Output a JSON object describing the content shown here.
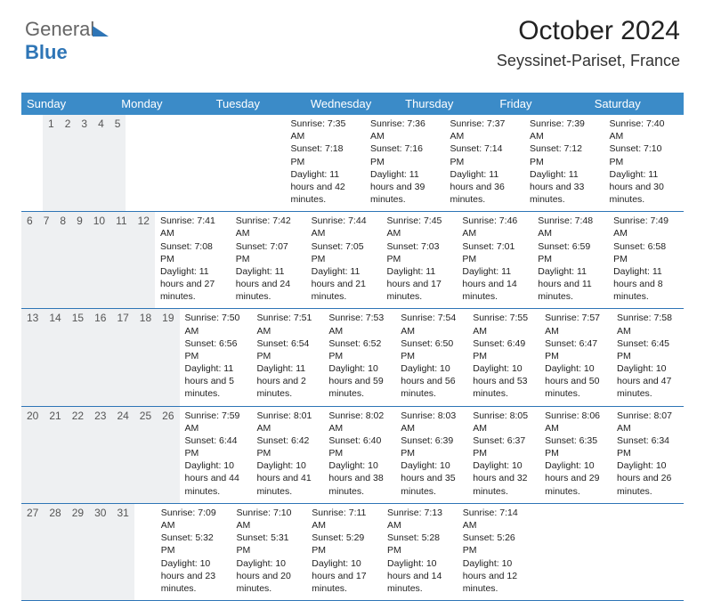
{
  "logo": {
    "part1": "General",
    "part2": "Blue"
  },
  "title": "October 2024",
  "subtitle": "Seyssinet-Pariset, France",
  "dayNames": [
    "Sunday",
    "Monday",
    "Tuesday",
    "Wednesday",
    "Thursday",
    "Friday",
    "Saturday"
  ],
  "colors": {
    "header_bg": "#3b8bc8",
    "daynum_bg": "#eef0f2",
    "border": "#2e75b6"
  },
  "weeks": [
    [
      null,
      null,
      {
        "n": "1",
        "sr": "7:35 AM",
        "ss": "7:18 PM",
        "dl": "11 hours and 42 minutes."
      },
      {
        "n": "2",
        "sr": "7:36 AM",
        "ss": "7:16 PM",
        "dl": "11 hours and 39 minutes."
      },
      {
        "n": "3",
        "sr": "7:37 AM",
        "ss": "7:14 PM",
        "dl": "11 hours and 36 minutes."
      },
      {
        "n": "4",
        "sr": "7:39 AM",
        "ss": "7:12 PM",
        "dl": "11 hours and 33 minutes."
      },
      {
        "n": "5",
        "sr": "7:40 AM",
        "ss": "7:10 PM",
        "dl": "11 hours and 30 minutes."
      }
    ],
    [
      {
        "n": "6",
        "sr": "7:41 AM",
        "ss": "7:08 PM",
        "dl": "11 hours and 27 minutes."
      },
      {
        "n": "7",
        "sr": "7:42 AM",
        "ss": "7:07 PM",
        "dl": "11 hours and 24 minutes."
      },
      {
        "n": "8",
        "sr": "7:44 AM",
        "ss": "7:05 PM",
        "dl": "11 hours and 21 minutes."
      },
      {
        "n": "9",
        "sr": "7:45 AM",
        "ss": "7:03 PM",
        "dl": "11 hours and 17 minutes."
      },
      {
        "n": "10",
        "sr": "7:46 AM",
        "ss": "7:01 PM",
        "dl": "11 hours and 14 minutes."
      },
      {
        "n": "11",
        "sr": "7:48 AM",
        "ss": "6:59 PM",
        "dl": "11 hours and 11 minutes."
      },
      {
        "n": "12",
        "sr": "7:49 AM",
        "ss": "6:58 PM",
        "dl": "11 hours and 8 minutes."
      }
    ],
    [
      {
        "n": "13",
        "sr": "7:50 AM",
        "ss": "6:56 PM",
        "dl": "11 hours and 5 minutes."
      },
      {
        "n": "14",
        "sr": "7:51 AM",
        "ss": "6:54 PM",
        "dl": "11 hours and 2 minutes."
      },
      {
        "n": "15",
        "sr": "7:53 AM",
        "ss": "6:52 PM",
        "dl": "10 hours and 59 minutes."
      },
      {
        "n": "16",
        "sr": "7:54 AM",
        "ss": "6:50 PM",
        "dl": "10 hours and 56 minutes."
      },
      {
        "n": "17",
        "sr": "7:55 AM",
        "ss": "6:49 PM",
        "dl": "10 hours and 53 minutes."
      },
      {
        "n": "18",
        "sr": "7:57 AM",
        "ss": "6:47 PM",
        "dl": "10 hours and 50 minutes."
      },
      {
        "n": "19",
        "sr": "7:58 AM",
        "ss": "6:45 PM",
        "dl": "10 hours and 47 minutes."
      }
    ],
    [
      {
        "n": "20",
        "sr": "7:59 AM",
        "ss": "6:44 PM",
        "dl": "10 hours and 44 minutes."
      },
      {
        "n": "21",
        "sr": "8:01 AM",
        "ss": "6:42 PM",
        "dl": "10 hours and 41 minutes."
      },
      {
        "n": "22",
        "sr": "8:02 AM",
        "ss": "6:40 PM",
        "dl": "10 hours and 38 minutes."
      },
      {
        "n": "23",
        "sr": "8:03 AM",
        "ss": "6:39 PM",
        "dl": "10 hours and 35 minutes."
      },
      {
        "n": "24",
        "sr": "8:05 AM",
        "ss": "6:37 PM",
        "dl": "10 hours and 32 minutes."
      },
      {
        "n": "25",
        "sr": "8:06 AM",
        "ss": "6:35 PM",
        "dl": "10 hours and 29 minutes."
      },
      {
        "n": "26",
        "sr": "8:07 AM",
        "ss": "6:34 PM",
        "dl": "10 hours and 26 minutes."
      }
    ],
    [
      {
        "n": "27",
        "sr": "7:09 AM",
        "ss": "5:32 PM",
        "dl": "10 hours and 23 minutes."
      },
      {
        "n": "28",
        "sr": "7:10 AM",
        "ss": "5:31 PM",
        "dl": "10 hours and 20 minutes."
      },
      {
        "n": "29",
        "sr": "7:11 AM",
        "ss": "5:29 PM",
        "dl": "10 hours and 17 minutes."
      },
      {
        "n": "30",
        "sr": "7:13 AM",
        "ss": "5:28 PM",
        "dl": "10 hours and 14 minutes."
      },
      {
        "n": "31",
        "sr": "7:14 AM",
        "ss": "5:26 PM",
        "dl": "10 hours and 12 minutes."
      },
      null,
      null
    ]
  ],
  "labels": {
    "sunrise": "Sunrise:",
    "sunset": "Sunset:",
    "daylight": "Daylight:"
  }
}
